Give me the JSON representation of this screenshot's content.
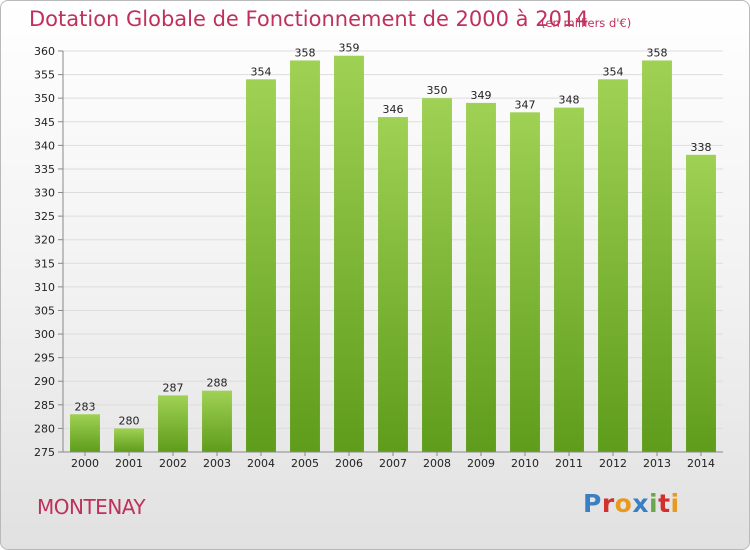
{
  "header": {
    "title": "Dotation Globale de Fonctionnement de 2000 à 2014",
    "subtitle": "(en milliers d'€)"
  },
  "footer": {
    "commune": "MONTENAY",
    "logo_text": "Proxiti",
    "logo_colors": [
      "#3a7fc1",
      "#d0302e",
      "#e99a1c",
      "#3a7fc1",
      "#6aa84f",
      "#d0302e",
      "#e99a1c"
    ]
  },
  "colors": {
    "accent": "#c0305c",
    "bar_top": "#9fd154",
    "bar_bottom": "#5f9c1c",
    "grid": "#dddddd",
    "axis": "#888888"
  },
  "chart_data": {
    "type": "bar",
    "categories": [
      "2000",
      "2001",
      "2002",
      "2003",
      "2004",
      "2005",
      "2006",
      "2007",
      "2008",
      "2009",
      "2010",
      "2011",
      "2012",
      "2013",
      "2014"
    ],
    "values": [
      283,
      280,
      287,
      288,
      354,
      358,
      359,
      346,
      350,
      349,
      347,
      348,
      354,
      358,
      338
    ],
    "title": "Dotation Globale de Fonctionnement de 2000 à 2014",
    "subtitle": "(en milliers d'€)",
    "xlabel": "",
    "ylabel": "",
    "ylim": [
      275,
      360
    ],
    "ytick_step": 5,
    "grid": true,
    "data_labels": true,
    "legend": "none"
  }
}
